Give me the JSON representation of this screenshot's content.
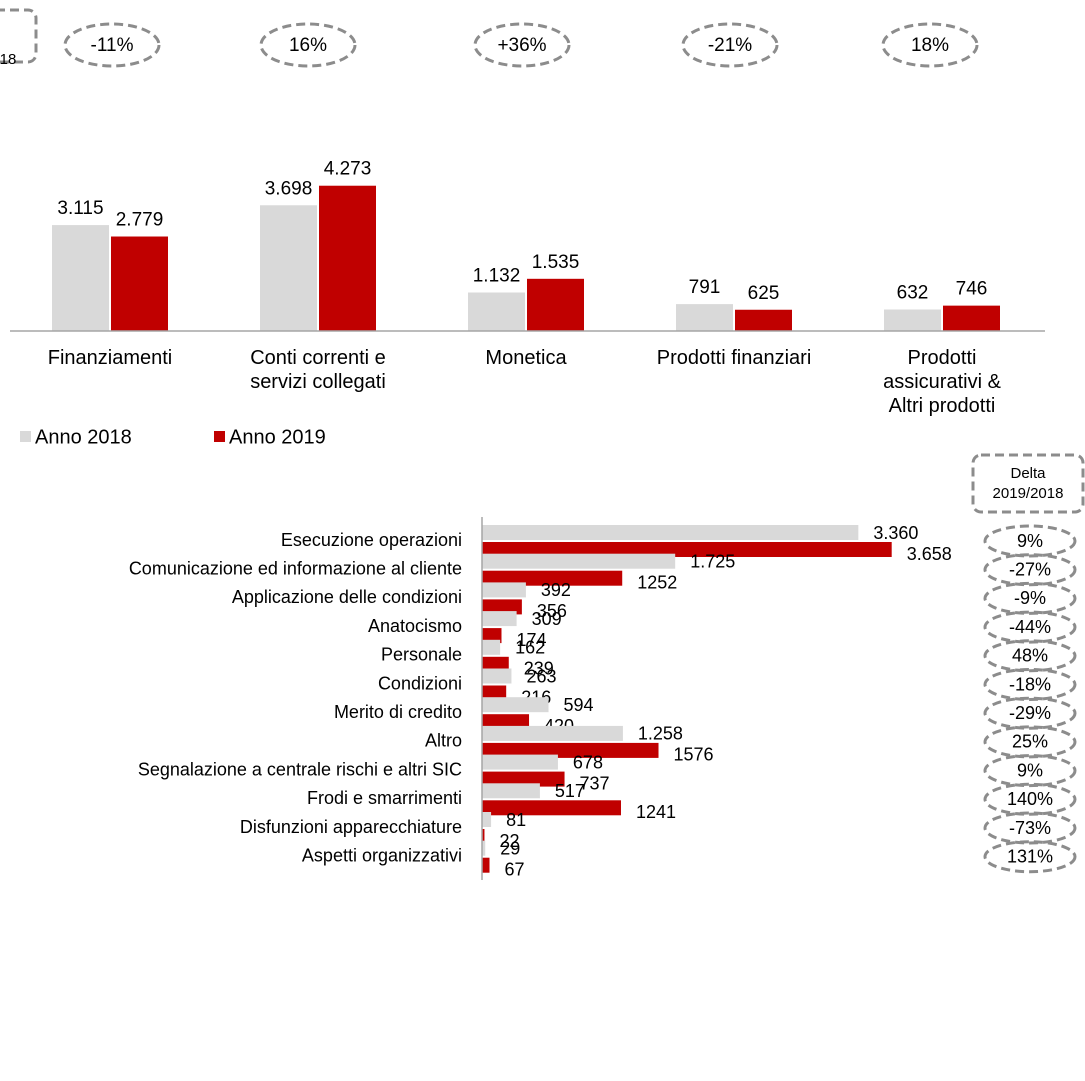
{
  "chart_data": [
    {
      "type": "bar",
      "categories": [
        "Finanziamenti",
        "Conti correnti e\nservizi collegati",
        "Monetica",
        "Prodotti finanziari",
        "Prodotti\nassicurativi &\nAltri prodotti"
      ],
      "series": [
        {
          "name": "Anno 2018",
          "color": "#d9d9d9",
          "values": [
            3115,
            3698,
            1132,
            791,
            632
          ],
          "value_labels": [
            "3.115",
            "3.698",
            "1.132",
            "791",
            "632"
          ]
        },
        {
          "name": "Anno 2019",
          "color": "#c00000",
          "values": [
            2779,
            4273,
            1535,
            625,
            746
          ],
          "value_labels": [
            "2.779",
            "4.273",
            "1.535",
            "625",
            "746"
          ]
        }
      ],
      "ylim": [
        0,
        4500
      ],
      "delta_title": "18",
      "deltas": [
        {
          "value": -11,
          "label": "-11%"
        },
        {
          "value": 16,
          "label": "16%"
        },
        {
          "value": 36,
          "label": "+36%"
        },
        {
          "value": -21,
          "label": "-21%"
        },
        {
          "value": 18,
          "label": "18%"
        }
      ]
    },
    {
      "type": "hbar",
      "categories": [
        "Esecuzione operazioni",
        "Comunicazione ed informazione al cliente",
        "Applicazione delle condizioni",
        "Anatocismo",
        "Personale",
        "Condizioni",
        "Merito di credito",
        "Altro",
        "Segnalazione a centrale rischi e altri SIC",
        "Frodi e smarrimenti",
        "Disfunzioni apparecchiature",
        "Aspetti organizzativi"
      ],
      "series": [
        {
          "name": "Anno 2018",
          "color": "#d9d9d9",
          "values": [
            3360,
            1725,
            392,
            309,
            162,
            263,
            594,
            1258,
            678,
            517,
            81,
            29
          ],
          "value_labels": [
            "3.360",
            "1.725",
            "392",
            "309",
            "162",
            "263",
            "594",
            "1.258",
            "678",
            "517",
            "81",
            "29"
          ]
        },
        {
          "name": "Anno 2019",
          "color": "#c00000",
          "values": [
            3658,
            1252,
            356,
            174,
            239,
            216,
            420,
            1576,
            737,
            1241,
            22,
            67
          ],
          "value_labels": [
            "3.658",
            "1252",
            "356",
            "174",
            "239",
            "216",
            "420",
            "1576",
            "737",
            "1241",
            "22",
            "67"
          ]
        }
      ],
      "xlim": [
        0,
        4000
      ],
      "delta_title": "Delta\n2019/2018",
      "deltas": [
        {
          "value": 9,
          "label": "9%"
        },
        {
          "value": -27,
          "label": "-27%"
        },
        {
          "value": -9,
          "label": "-9%"
        },
        {
          "value": -44,
          "label": "-44%"
        },
        {
          "value": 48,
          "label": "48%"
        },
        {
          "value": -18,
          "label": "-18%"
        },
        {
          "value": -29,
          "label": "-29%"
        },
        {
          "value": 25,
          "label": "25%"
        },
        {
          "value": 9,
          "label": "9%"
        },
        {
          "value": 140,
          "label": "140%"
        },
        {
          "value": -73,
          "label": "-73%"
        },
        {
          "value": 131,
          "label": "131%"
        }
      ]
    }
  ]
}
